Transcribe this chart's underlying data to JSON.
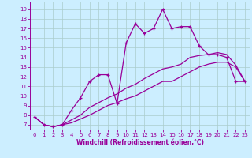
{
  "title": "",
  "xlabel": "Windchill (Refroidissement éolien,°C)",
  "ylabel": "",
  "bg_color": "#cceeff",
  "line_color": "#990099",
  "grid_color": "#aacccc",
  "x_ticks": [
    0,
    1,
    2,
    3,
    4,
    5,
    6,
    7,
    8,
    9,
    10,
    11,
    12,
    13,
    14,
    15,
    16,
    17,
    18,
    19,
    20,
    21,
    22,
    23
  ],
  "y_ticks": [
    7,
    8,
    9,
    10,
    11,
    12,
    13,
    14,
    15,
    16,
    17,
    18,
    19
  ],
  "xlim": [
    -0.5,
    23.5
  ],
  "ylim": [
    6.5,
    19.8
  ],
  "line1_x": [
    0,
    1,
    2,
    3,
    4,
    5,
    6,
    7,
    8,
    9,
    10,
    11,
    12,
    13,
    14,
    15,
    16,
    17,
    18,
    19,
    20,
    21,
    22,
    23
  ],
  "line1_y": [
    7.8,
    7.0,
    6.8,
    7.0,
    8.5,
    9.8,
    11.5,
    12.2,
    12.2,
    9.2,
    15.5,
    17.5,
    16.5,
    17.0,
    19.0,
    17.0,
    17.2,
    17.2,
    15.2,
    14.3,
    14.3,
    14.0,
    11.5,
    11.5
  ],
  "line2_x": [
    0,
    1,
    2,
    3,
    4,
    5,
    6,
    7,
    8,
    9,
    10,
    11,
    12,
    13,
    14,
    15,
    16,
    17,
    18,
    19,
    20,
    21,
    22,
    23
  ],
  "line2_y": [
    7.8,
    7.0,
    6.8,
    7.0,
    7.5,
    8.0,
    8.8,
    9.3,
    9.8,
    10.2,
    10.8,
    11.2,
    11.8,
    12.3,
    12.8,
    13.0,
    13.3,
    14.0,
    14.2,
    14.3,
    14.5,
    14.3,
    13.2,
    11.5
  ],
  "line3_x": [
    0,
    1,
    2,
    3,
    4,
    5,
    6,
    7,
    8,
    9,
    10,
    11,
    12,
    13,
    14,
    15,
    16,
    17,
    18,
    19,
    20,
    21,
    22,
    23
  ],
  "line3_y": [
    7.8,
    7.0,
    6.8,
    7.0,
    7.2,
    7.6,
    8.0,
    8.5,
    9.0,
    9.3,
    9.7,
    10.0,
    10.5,
    11.0,
    11.5,
    11.5,
    12.0,
    12.5,
    13.0,
    13.3,
    13.5,
    13.5,
    13.0,
    11.5
  ]
}
